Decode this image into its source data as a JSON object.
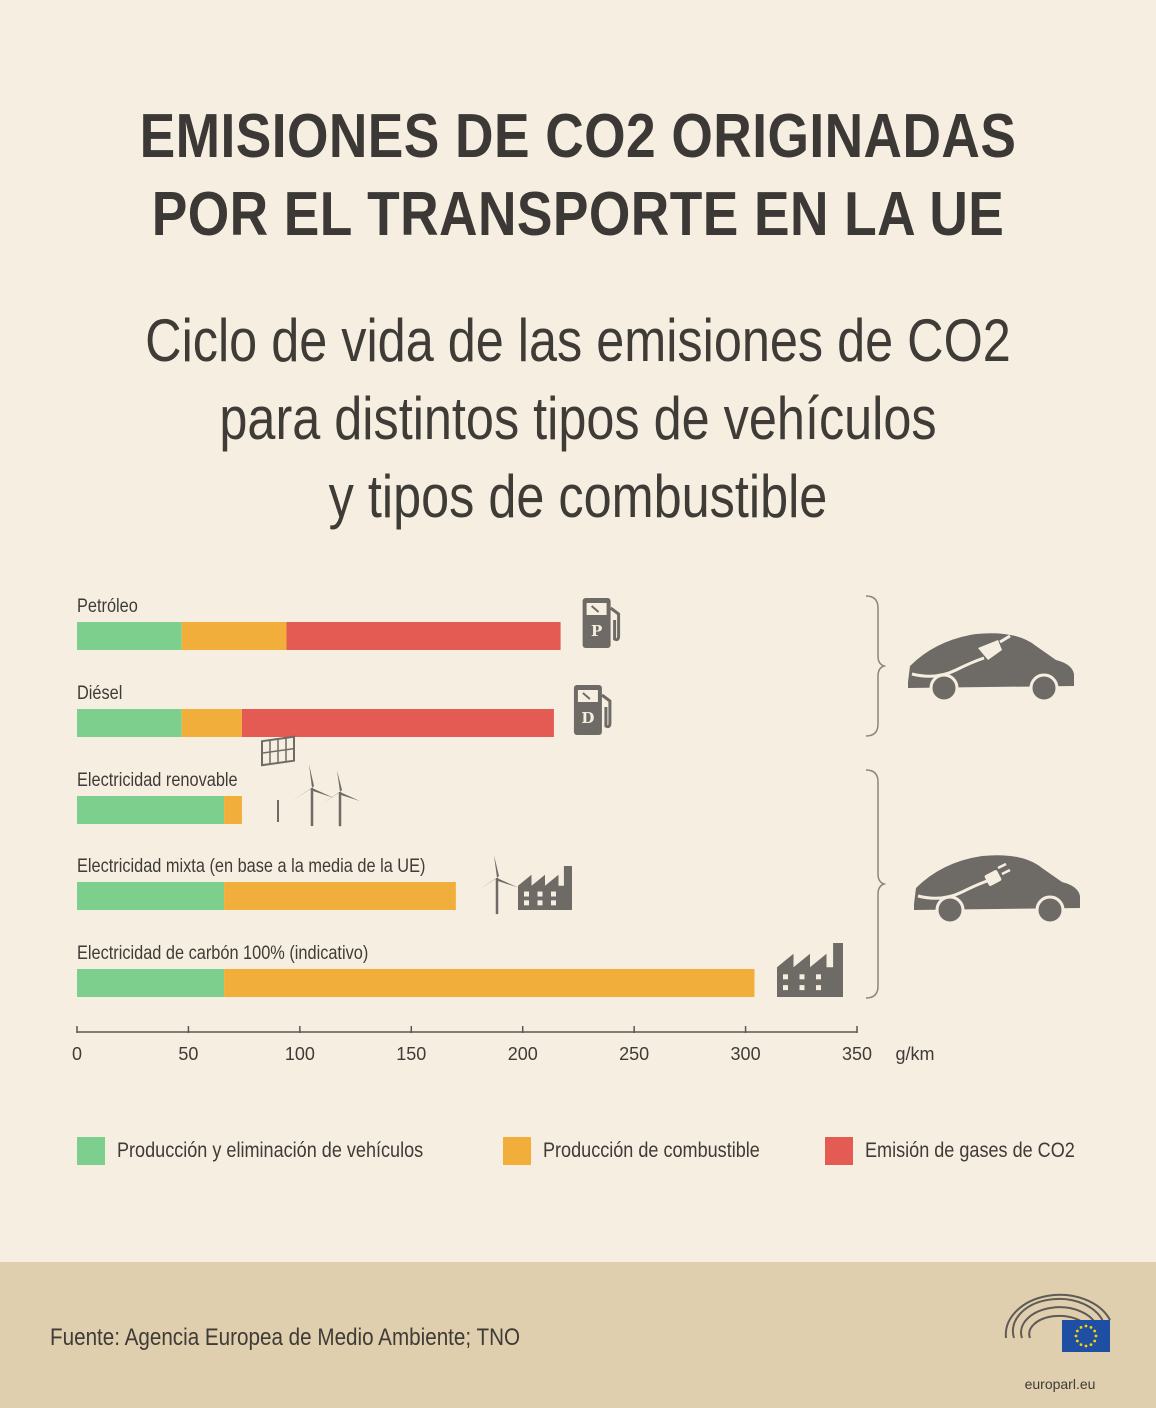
{
  "title": {
    "line1": "EMISIONES DE CO2 ORIGINADAS",
    "line2": "POR EL TRANSPORTE EN LA UE"
  },
  "subtitle": {
    "line1": "Ciclo de vida de las emisiones de CO2",
    "line2": "para distintos tipos de vehículos",
    "line3": "y tipos de combustible"
  },
  "colors": {
    "production": "#7dcf8e",
    "fuel": "#f2ae3a",
    "emission": "#e35b52",
    "axis": "#5a5651",
    "icon": "#6e6b66",
    "background": "#f6efe1",
    "footer": "#e0cfae"
  },
  "chart_data": {
    "type": "bar",
    "orientation": "horizontal",
    "stacked": true,
    "categories": [
      "Petróleo",
      "Diésel",
      "Electricidad renovable",
      "Electricidad mixta (en base a la media de la UE)",
      "Electricidad de carbón 100% (indicativo)"
    ],
    "series": [
      {
        "name": "Producción y eliminación de vehículos",
        "values": [
          47,
          47,
          66,
          66,
          66
        ]
      },
      {
        "name": "Producción de combustible",
        "values": [
          47,
          27,
          8,
          104,
          238
        ]
      },
      {
        "name": "Emisión de gases de CO2",
        "values": [
          123,
          140,
          0,
          0,
          0
        ]
      }
    ],
    "xlabel": "g/km",
    "xlim": [
      0,
      350
    ],
    "xticks": [
      0,
      50,
      100,
      150,
      200,
      250,
      300,
      350
    ],
    "legend_position": "bottom",
    "grid": false,
    "icons": [
      "fuel-pump-petrol-icon",
      "fuel-pump-diesel-icon",
      "solar-wind-icon",
      "wind-factory-icon",
      "factory-icon"
    ],
    "pump_letters": [
      "P",
      "D"
    ],
    "group_icons": [
      "combustion-car-icon",
      "electric-car-icon"
    ]
  },
  "footer": {
    "source": "Fuente: Agencia Europea de Medio Ambiente; TNO",
    "logo_text": "europarl.eu"
  }
}
